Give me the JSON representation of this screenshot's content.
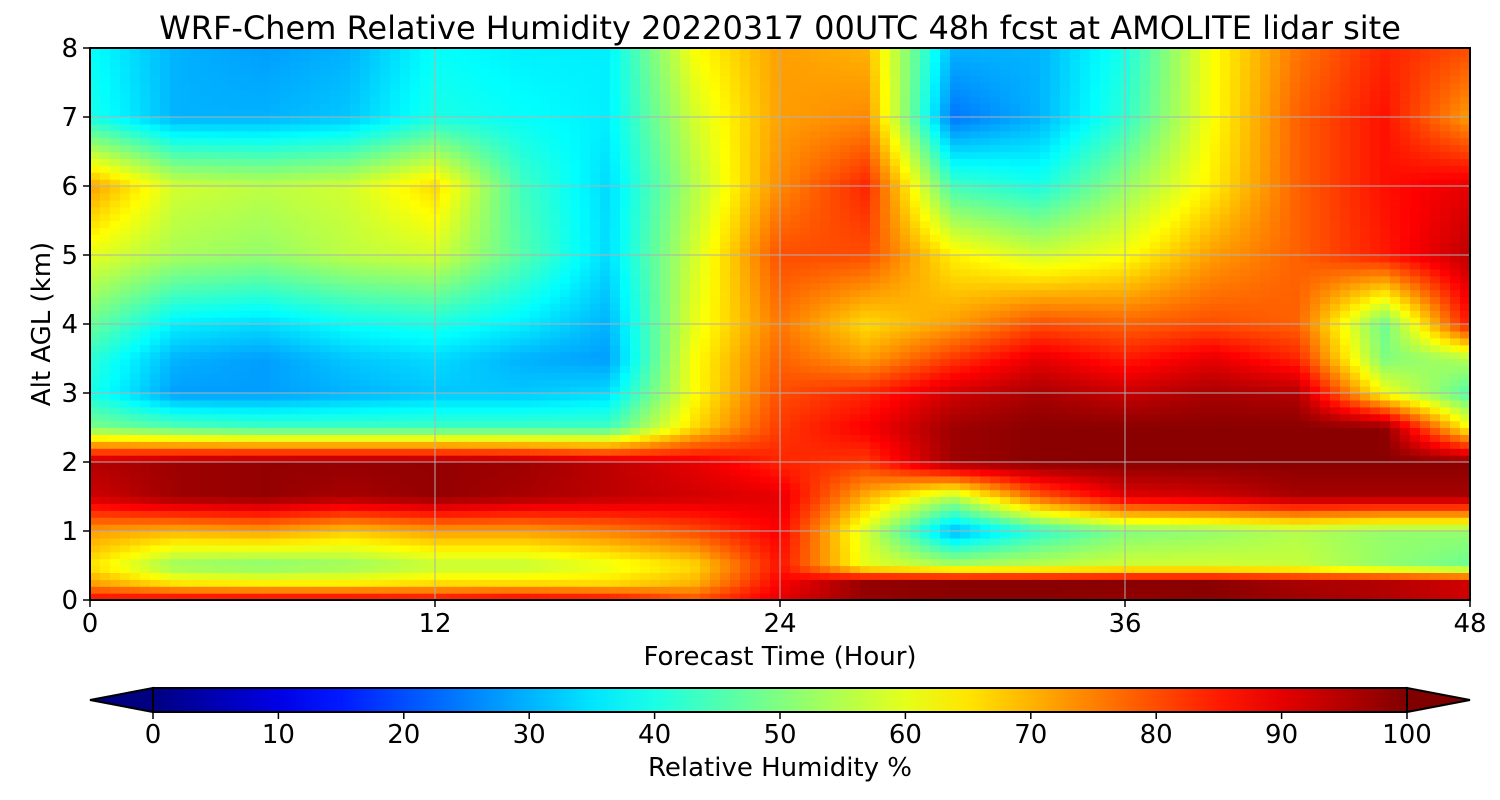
{
  "chart_data": {
    "type": "heatmap",
    "title": "WRF-Chem Relative Humidity 20220317 00UTC 48h fcst at AMOLITE lidar site",
    "xlabel": "Forecast Time (Hour)",
    "ylabel": "Alt AGL (km)",
    "xlim": [
      0,
      48
    ],
    "ylim": [
      0,
      8
    ],
    "xticks": [
      0,
      12,
      24,
      36,
      48
    ],
    "yticks": [
      0,
      1,
      2,
      3,
      4,
      5,
      6,
      7,
      8
    ],
    "grid": true,
    "colormap": "jet",
    "colorbar": {
      "label": "Relative Humidity %",
      "min": 0,
      "max": 100,
      "ticks": [
        0,
        10,
        20,
        30,
        40,
        50,
        60,
        70,
        80,
        90,
        100
      ],
      "extend": "both",
      "orientation": "horizontal"
    },
    "x": [
      0,
      3,
      6,
      9,
      12,
      15,
      18,
      21,
      24,
      27,
      30,
      33,
      36,
      39,
      42,
      45,
      48
    ],
    "y": [
      0,
      0.25,
      0.5,
      1,
      1.5,
      2,
      2.5,
      3,
      3.5,
      4,
      5,
      6,
      7,
      8
    ],
    "z": [
      [
        88,
        90,
        90,
        90,
        88,
        90,
        88,
        80,
        90,
        98,
        99,
        99,
        98,
        99,
        97,
        95,
        92
      ],
      [
        72,
        65,
        64,
        64,
        66,
        66,
        66,
        70,
        88,
        98,
        99,
        99,
        99,
        99,
        96,
        95,
        92
      ],
      [
        65,
        52,
        50,
        52,
        56,
        56,
        60,
        66,
        86,
        60,
        55,
        56,
        58,
        58,
        57,
        52,
        48
      ],
      [
        72,
        70,
        72,
        68,
        72,
        72,
        75,
        80,
        88,
        58,
        30,
        42,
        50,
        52,
        55,
        52,
        52
      ],
      [
        92,
        97,
        98,
        96,
        98,
        96,
        94,
        92,
        90,
        70,
        55,
        78,
        90,
        92,
        96,
        96,
        96
      ],
      [
        95,
        97,
        98,
        98,
        98,
        97,
        94,
        90,
        84,
        82,
        97,
        99,
        99,
        99,
        99,
        99,
        99
      ],
      [
        50,
        46,
        44,
        44,
        44,
        44,
        44,
        66,
        82,
        88,
        97,
        99,
        99,
        99,
        99,
        99,
        62
      ],
      [
        40,
        28,
        28,
        30,
        32,
        32,
        34,
        62,
        80,
        84,
        92,
        96,
        93,
        96,
        95,
        62,
        45
      ],
      [
        42,
        30,
        28,
        32,
        34,
        30,
        28,
        62,
        78,
        72,
        82,
        90,
        85,
        90,
        84,
        50,
        55
      ],
      [
        48,
        36,
        34,
        38,
        40,
        36,
        30,
        60,
        76,
        66,
        72,
        80,
        78,
        80,
        78,
        48,
        86
      ],
      [
        60,
        54,
        52,
        56,
        58,
        46,
        34,
        58,
        80,
        80,
        64,
        58,
        62,
        72,
        78,
        85,
        94
      ],
      [
        72,
        58,
        56,
        58,
        66,
        44,
        34,
        55,
        74,
        84,
        44,
        40,
        52,
        64,
        78,
        86,
        90
      ],
      [
        40,
        30,
        30,
        32,
        40,
        38,
        36,
        58,
        72,
        74,
        24,
        30,
        42,
        62,
        78,
        86,
        72
      ],
      [
        38,
        30,
        28,
        30,
        38,
        36,
        36,
        62,
        72,
        70,
        30,
        30,
        40,
        62,
        76,
        84,
        80
      ]
    ]
  }
}
